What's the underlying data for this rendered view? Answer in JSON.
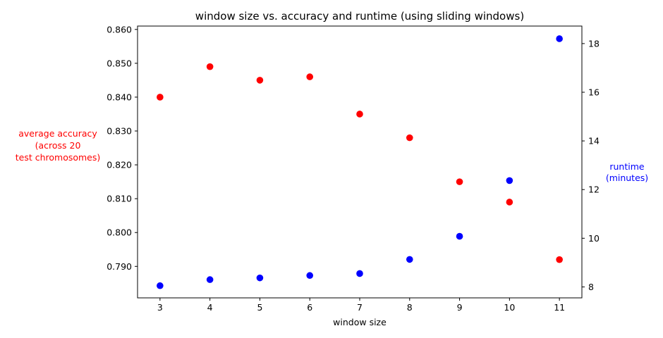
{
  "chart_data": {
    "type": "scatter",
    "title": "window size vs. accuracy and runtime (using sliding windows)",
    "xlabel": "window size",
    "ylabel_left": [
      "average accuracy",
      "(across 20",
      "test chromosomes)"
    ],
    "ylabel_right": [
      "runtime",
      "(minutes)"
    ],
    "x_ticks": [
      3,
      4,
      5,
      6,
      7,
      8,
      9,
      10,
      11
    ],
    "xlim": [
      2.55,
      11.45
    ],
    "left_ticks": [
      "0.790",
      "0.800",
      "0.810",
      "0.820",
      "0.830",
      "0.840",
      "0.850",
      "0.860"
    ],
    "left_ylim": [
      0.7807,
      0.861
    ],
    "right_ticks": [
      "8",
      "10",
      "12",
      "14",
      "16",
      "18"
    ],
    "right_ylim": [
      7.55,
      18.72
    ],
    "grid": false,
    "series": [
      {
        "axis": "left",
        "color": "#ff0000",
        "x": [
          3,
          4,
          5,
          6,
          7,
          8,
          9,
          10,
          11
        ],
        "y": [
          0.84,
          0.849,
          0.845,
          0.846,
          0.835,
          0.828,
          0.815,
          0.809,
          0.792
        ]
      },
      {
        "axis": "right",
        "color": "#0000ff",
        "x": [
          3,
          4,
          5,
          6,
          7,
          8,
          9,
          10,
          11
        ],
        "y": [
          8.05,
          8.3,
          8.37,
          8.47,
          8.55,
          9.13,
          10.08,
          12.37,
          18.2
        ]
      }
    ]
  }
}
